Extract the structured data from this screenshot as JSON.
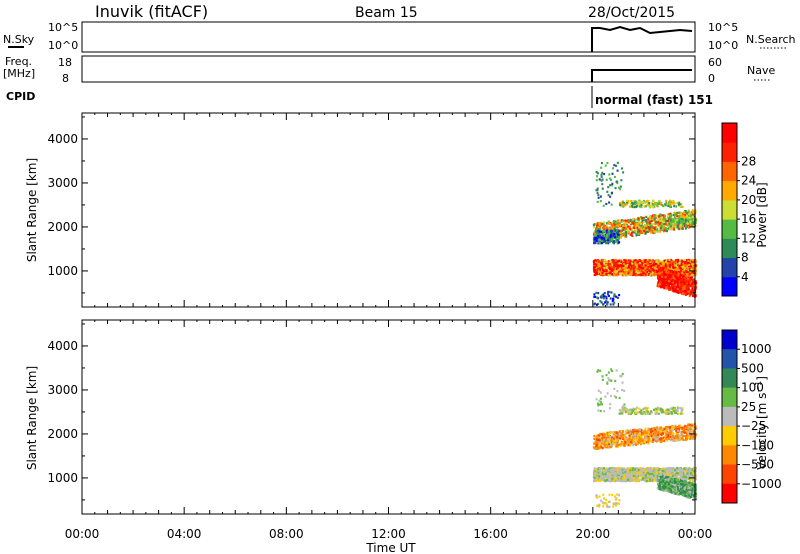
{
  "header": {
    "station": "Inuvik (fitACF)",
    "beam": "Beam 15",
    "date": "28/Oct/2015"
  },
  "panel_labels": {
    "nsky": "N.Sky",
    "freq_line1": "Freq.",
    "freq_line2": "[MHz]",
    "cpid": "CPID",
    "nsearch": "N.Search",
    "nave": "Nave",
    "cpid_value": "normal (fast) 151"
  },
  "small_axes": {
    "nsky_ticks": [
      "10^5",
      "10^0"
    ],
    "nsearch_ticks": [
      "10^5",
      "10^0"
    ],
    "freq_ticks": [
      "18",
      "8"
    ],
    "nave_ticks": [
      "60",
      "0"
    ]
  },
  "colors": {
    "power_scale": [
      "#0000ff",
      "#2244aa",
      "#2e8b57",
      "#55bb44",
      "#ccdd33",
      "#ffaa00",
      "#ff6600",
      "#ff2200",
      "#ff0000"
    ],
    "velocity_scale": [
      "#0000cc",
      "#2255aa",
      "#338855",
      "#66bb44",
      "#bbbbbb",
      "#ffcc00",
      "#ff8800",
      "#ff4400",
      "#ff0000"
    ]
  },
  "chart_data": [
    {
      "type": "heatmap",
      "name": "power",
      "xlabel": "Time UT",
      "ylabel": "Slant Range [km]",
      "x_ticks": [
        "00:00",
        "04:00",
        "08:00",
        "12:00",
        "16:00",
        "20:00",
        "00:00"
      ],
      "xlim_hours": [
        0,
        24
      ],
      "y_ticks": [
        1000,
        2000,
        3000,
        4000
      ],
      "ylim": [
        180,
        4590
      ],
      "colorbar": {
        "label": "Power [dB]",
        "ticks": [
          4,
          8,
          12,
          16,
          20,
          24,
          28
        ],
        "range": [
          0,
          32
        ]
      },
      "data_time_range_hours": [
        20,
        24
      ]
    },
    {
      "type": "heatmap",
      "name": "velocity",
      "xlabel": "Time UT",
      "ylabel": "Slant Range [km]",
      "x_ticks": [
        "00:00",
        "04:00",
        "08:00",
        "12:00",
        "16:00",
        "20:00",
        "00:00"
      ],
      "xlim_hours": [
        0,
        24
      ],
      "y_ticks": [
        1000,
        2000,
        3000,
        4000
      ],
      "ylim": [
        180,
        4590
      ],
      "colorbar": {
        "label": "Velocity [m s^-1]",
        "ticks": [
          "1000",
          "500",
          "100",
          "25",
          "−25",
          "−100",
          "−500",
          "−1000"
        ]
      },
      "data_time_range_hours": [
        20,
        24
      ]
    }
  ]
}
